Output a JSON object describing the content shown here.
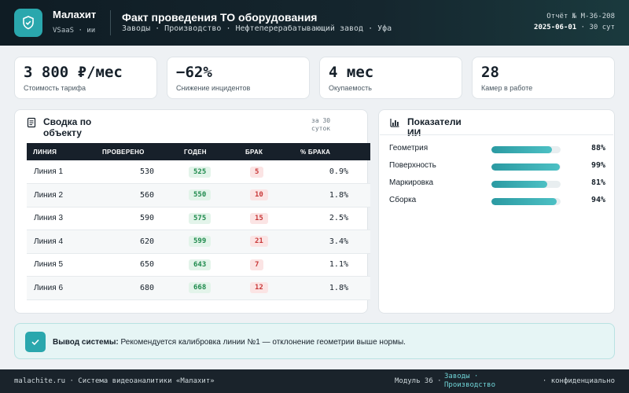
{
  "header": {
    "brand": "Малахит",
    "brand_sub": "VSaaS · ии",
    "title": "Факт проведения ТО оборудования",
    "breadcrumbs": "Заводы · Производство · Нефтеперерабатывающий завод · Уфа",
    "report_number": "Отчёт № M-36-208",
    "report_date": "2025-06-01",
    "report_period": "· 30 сут"
  },
  "kpis": [
    {
      "value": "3 800 ₽/мес",
      "label": "Стоимость тарифа"
    },
    {
      "value": "−62%",
      "label": "Снижение инцидентов"
    },
    {
      "value": "4 мес",
      "label": "Окупаемость"
    },
    {
      "value": "28",
      "label": "Камер в работе"
    }
  ],
  "summary": {
    "title": "Сводка по объекту",
    "period": "за 30 суток",
    "columns": [
      "ЛИНИЯ",
      "ПРОВЕРЕНО",
      "ГОДЕН",
      "БРАК",
      "% БРАКА"
    ],
    "rows": [
      {
        "line": "Линия 1",
        "checked": "530",
        "good": "525",
        "defect": "5",
        "pct": "0.9%"
      },
      {
        "line": "Линия 2",
        "checked": "560",
        "good": "550",
        "defect": "10",
        "pct": "1.8%"
      },
      {
        "line": "Линия 3",
        "checked": "590",
        "good": "575",
        "defect": "15",
        "pct": "2.5%"
      },
      {
        "line": "Линия 4",
        "checked": "620",
        "good": "599",
        "defect": "21",
        "pct": "3.4%"
      },
      {
        "line": "Линия 5",
        "checked": "650",
        "good": "643",
        "defect": "7",
        "pct": "1.1%"
      },
      {
        "line": "Линия 6",
        "checked": "680",
        "good": "668",
        "defect": "12",
        "pct": "1.8%"
      }
    ]
  },
  "ai": {
    "title": "Показатели ИИ",
    "metrics": [
      {
        "name": "Геометрия",
        "value": 88,
        "label": "88%"
      },
      {
        "name": "Поверхность",
        "value": 99,
        "label": "99%"
      },
      {
        "name": "Маркировка",
        "value": 81,
        "label": "81%"
      },
      {
        "name": "Сборка",
        "value": 94,
        "label": "94%"
      }
    ]
  },
  "conclusion": {
    "label": "Вывод системы:",
    "text": "Рекомендуется калибровка линии №1 — отклонение геометрии выше нормы."
  },
  "footer": {
    "left": "malachite.ru · Система видеоаналитики «Малахит»",
    "module": "Модуль 36 ·",
    "section": "Заводы · Производство",
    "right": "· конфиденциально"
  },
  "colors": {
    "accent": "#2aa7ad",
    "header_bg": "#0f1c24",
    "good": "#1e8a4c",
    "bad": "#c93a3a"
  },
  "icons": {
    "logo": "shield-check-icon",
    "summary": "document-icon",
    "ai": "bar-chart-icon",
    "conclusion": "check-icon"
  }
}
